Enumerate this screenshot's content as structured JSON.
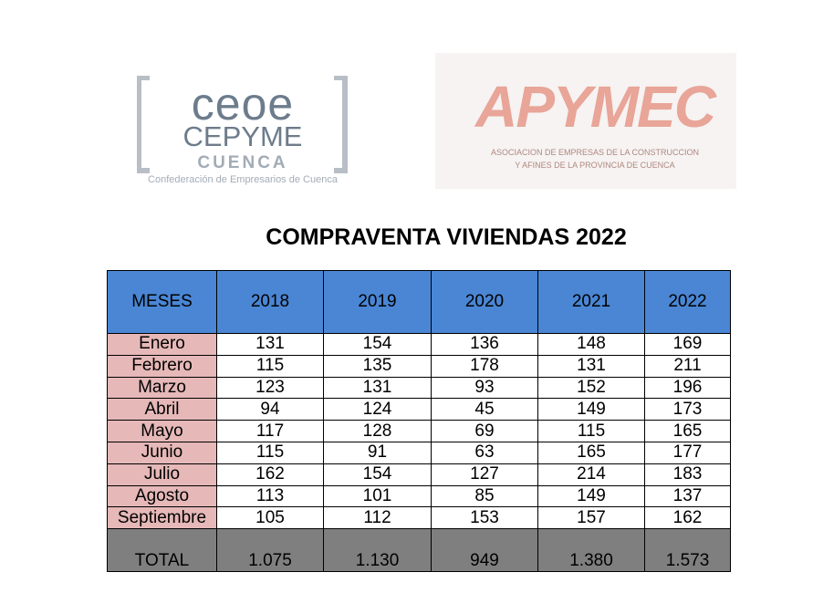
{
  "logos": {
    "ceoe": {
      "line1": "CEOE",
      "line2": "CEPYME",
      "line3": "CUENCA",
      "caption": "Confederación de Empresarios de Cuenca"
    },
    "apymec": {
      "name": "APYMEC",
      "caption_line1": "ASOCIACION DE EMPRESAS DE LA CONSTRUCCION",
      "caption_line2": "Y AFINES DE LA PROVINCIA DE CUENCA"
    }
  },
  "title": "COMPRAVENTA VIVIENDAS 2022",
  "table": {
    "header": [
      "MESES",
      "2018",
      "2019",
      "2020",
      "2021",
      "2022"
    ],
    "rows": [
      [
        "Enero",
        131,
        154,
        136,
        148,
        169
      ],
      [
        "Febrero",
        115,
        135,
        178,
        131,
        211
      ],
      [
        "Marzo",
        123,
        131,
        93,
        152,
        196
      ],
      [
        "Abril",
        94,
        124,
        45,
        149,
        173
      ],
      [
        "Mayo",
        117,
        128,
        69,
        115,
        165
      ],
      [
        "Junio",
        115,
        91,
        63,
        165,
        177
      ],
      [
        "Julio",
        162,
        154,
        127,
        214,
        183
      ],
      [
        "Agosto",
        113,
        101,
        85,
        149,
        137
      ],
      [
        "Septiembre",
        105,
        112,
        153,
        157,
        162
      ]
    ],
    "total": [
      "TOTAL",
      "1.075",
      "1.130",
      "949",
      "1.380",
      "1.573"
    ]
  }
}
